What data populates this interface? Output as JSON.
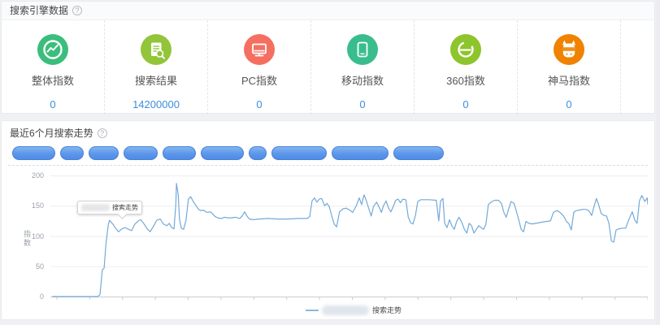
{
  "panel1": {
    "title": "搜索引擎数据",
    "help_icon": "?",
    "value_color": "#3d8edc",
    "cards": [
      {
        "key": "overall-index",
        "label": "整体指数",
        "value": "0",
        "color": "#3bbe7c",
        "icon": "trend-circle-icon"
      },
      {
        "key": "search-results",
        "label": "搜索结果",
        "value": "14200000",
        "color": "#92c53a",
        "icon": "document-search-icon"
      },
      {
        "key": "pc-index",
        "label": "PC指数",
        "value": "0",
        "color": "#f56f61",
        "icon": "monitor-icon"
      },
      {
        "key": "mobile-index",
        "label": "移动指数",
        "value": "0",
        "color": "#3abd8d",
        "icon": "smartphone-icon"
      },
      {
        "key": "360-index",
        "label": "360指数",
        "value": "0",
        "color": "#8ec42c",
        "icon": "360-browser-icon"
      },
      {
        "key": "shenma-index",
        "label": "神马指数",
        "value": "0",
        "color": "#f08200",
        "icon": "shenma-icon"
      }
    ]
  },
  "panel2": {
    "title": "最近6个月搜索走势",
    "help_icon": "?",
    "tag_pill_widths": [
      53,
      29,
      37,
      42,
      41,
      53,
      22,
      68,
      70,
      62
    ],
    "tooltip": {
      "label": "搜索走势"
    },
    "legend": {
      "label": "搜索走势"
    }
  },
  "chart_data": {
    "type": "line",
    "title": "最近6个月搜索走势",
    "xlabel": "",
    "ylabel": "指数",
    "ylim": [
      0,
      200
    ],
    "y_ticks": [
      200,
      150,
      100,
      50,
      0
    ],
    "x_tick_count": 19,
    "grid": true,
    "legend_position": "bottom",
    "x_axis_labels_visible": false,
    "line_color": "#74a9d8",
    "grid_color": "#ecedf0",
    "axis_color": "#c8ccd0",
    "series": [
      {
        "name": "搜索走势",
        "x_unit": "percent_of_6_months",
        "points": [
          [
            0.3,
            0
          ],
          [
            2,
            0
          ],
          [
            4.1,
            0
          ],
          [
            6.1,
            0
          ],
          [
            7.9,
            0
          ],
          [
            8.3,
            3
          ],
          [
            8.7,
            44
          ],
          [
            9,
            47
          ],
          [
            9.3,
            88
          ],
          [
            9.7,
            119
          ],
          [
            9.9,
            126
          ],
          [
            10.5,
            119
          ],
          [
            10.9,
            113
          ],
          [
            11.4,
            107
          ],
          [
            12,
            112
          ],
          [
            12.5,
            114
          ],
          [
            13.1,
            111
          ],
          [
            13.6,
            109
          ],
          [
            14.1,
            119
          ],
          [
            14.7,
            125
          ],
          [
            15.1,
            127
          ],
          [
            15.6,
            121
          ],
          [
            16.2,
            112
          ],
          [
            16.7,
            107
          ],
          [
            17.3,
            117
          ],
          [
            17.8,
            126
          ],
          [
            18.4,
            128
          ],
          [
            18.9,
            120
          ],
          [
            19.5,
            117
          ],
          [
            19.9,
            121
          ],
          [
            20.3,
            114
          ],
          [
            20.7,
            112
          ],
          [
            21,
            152
          ],
          [
            21.1,
            187
          ],
          [
            21.4,
            168
          ],
          [
            21.6,
            128
          ],
          [
            21.9,
            113
          ],
          [
            22.3,
            111
          ],
          [
            22.7,
            126
          ],
          [
            23.1,
            161
          ],
          [
            23.5,
            165
          ],
          [
            23.9,
            157
          ],
          [
            24.4,
            150
          ],
          [
            24.8,
            144
          ],
          [
            25.2,
            142
          ],
          [
            25.6,
            143
          ],
          [
            26,
            140
          ],
          [
            26.4,
            139
          ],
          [
            26.8,
            140
          ],
          [
            27.2,
            136
          ],
          [
            27.6,
            132
          ],
          [
            28,
            130
          ],
          [
            28.6,
            129
          ],
          [
            29.1,
            131
          ],
          [
            29.7,
            130
          ],
          [
            30.3,
            130
          ],
          [
            31,
            131
          ],
          [
            31.7,
            129
          ],
          [
            32.1,
            133
          ],
          [
            32.5,
            140
          ],
          [
            32.9,
            133
          ],
          [
            33.3,
            128
          ],
          [
            34,
            127
          ],
          [
            34.8,
            128
          ],
          [
            36.5,
            129
          ],
          [
            38.1,
            128
          ],
          [
            39.7,
            128
          ],
          [
            41.4,
            129
          ],
          [
            43,
            129
          ],
          [
            43.4,
            132
          ],
          [
            43.8,
            158
          ],
          [
            44.2,
            163
          ],
          [
            44.6,
            156
          ],
          [
            45,
            161
          ],
          [
            45.4,
            162
          ],
          [
            45.9,
            150
          ],
          [
            46.3,
            154
          ],
          [
            46.7,
            148
          ],
          [
            47.1,
            133
          ],
          [
            47.5,
            120
          ],
          [
            47.9,
            115
          ],
          [
            48.4,
            140
          ],
          [
            49,
            145
          ],
          [
            49.5,
            146
          ],
          [
            50.1,
            143
          ],
          [
            50.6,
            139
          ],
          [
            51.2,
            150
          ],
          [
            51.7,
            163
          ],
          [
            52.1,
            152
          ],
          [
            52.5,
            168
          ],
          [
            52.9,
            158
          ],
          [
            53.3,
            145
          ],
          [
            53.7,
            133
          ],
          [
            54.1,
            149
          ],
          [
            54.6,
            156
          ],
          [
            55,
            148
          ],
          [
            55.4,
            139
          ],
          [
            55.8,
            151
          ],
          [
            56.2,
            158
          ],
          [
            56.6,
            146
          ],
          [
            57,
            140
          ],
          [
            57.4,
            149
          ],
          [
            57.8,
            159
          ],
          [
            58.2,
            161
          ],
          [
            58.6,
            155
          ],
          [
            59,
            161
          ],
          [
            59.5,
            160
          ],
          [
            59.9,
            131
          ],
          [
            60.3,
            122
          ],
          [
            60.7,
            120
          ],
          [
            61.1,
            134
          ],
          [
            61.5,
            157
          ],
          [
            62,
            160
          ],
          [
            63.4,
            160
          ],
          [
            64.6,
            159
          ],
          [
            65,
            125
          ],
          [
            65.3,
            158
          ],
          [
            65.7,
            162
          ],
          [
            66,
            121
          ],
          [
            66.4,
            114
          ],
          [
            66.8,
            127
          ],
          [
            67.2,
            117
          ],
          [
            67.6,
            111
          ],
          [
            68,
            124
          ],
          [
            68.4,
            131
          ],
          [
            68.8,
            124
          ],
          [
            69.3,
            111
          ],
          [
            69.7,
            105
          ],
          [
            70.1,
            121
          ],
          [
            70.5,
            117
          ],
          [
            70.9,
            105
          ],
          [
            71.3,
            111
          ],
          [
            71.7,
            117
          ],
          [
            72.1,
            114
          ],
          [
            72.5,
            111
          ],
          [
            72.9,
            119
          ],
          [
            73.3,
            152
          ],
          [
            73.9,
            157
          ],
          [
            74.4,
            159
          ],
          [
            75,
            159
          ],
          [
            75.5,
            154
          ],
          [
            75.9,
            139
          ],
          [
            76.3,
            131
          ],
          [
            76.7,
            144
          ],
          [
            77.1,
            157
          ],
          [
            77.6,
            154
          ],
          [
            78,
            141
          ],
          [
            78.4,
            127
          ],
          [
            78.8,
            111
          ],
          [
            79.2,
            107
          ],
          [
            79.6,
            124
          ],
          [
            80.1,
            121
          ],
          [
            80.7,
            120
          ],
          [
            81.2,
            121
          ],
          [
            81.8,
            122
          ],
          [
            82.3,
            123
          ],
          [
            83,
            124
          ],
          [
            83.7,
            125
          ],
          [
            84.2,
            139
          ],
          [
            84.8,
            142
          ],
          [
            85.3,
            139
          ],
          [
            85.9,
            133
          ],
          [
            86.4,
            124
          ],
          [
            86.8,
            120
          ],
          [
            87.2,
            110
          ],
          [
            87.6,
            139
          ],
          [
            88,
            142
          ],
          [
            88.6,
            143
          ],
          [
            89.1,
            144
          ],
          [
            89.7,
            144
          ],
          [
            90.2,
            141
          ],
          [
            90.6,
            134
          ],
          [
            91,
            149
          ],
          [
            91.4,
            162
          ],
          [
            91.8,
            151
          ],
          [
            92.2,
            137
          ],
          [
            92.7,
            134
          ],
          [
            93.1,
            133
          ],
          [
            93.5,
            121
          ],
          [
            93.9,
            92
          ],
          [
            94.3,
            90
          ],
          [
            94.7,
            110
          ],
          [
            95.2,
            112
          ],
          [
            95.8,
            113
          ],
          [
            96.3,
            113
          ],
          [
            96.9,
            129
          ],
          [
            97.4,
            140
          ],
          [
            97.8,
            127
          ],
          [
            98.2,
            121
          ],
          [
            98.6,
            158
          ],
          [
            99,
            167
          ],
          [
            99.5,
            157
          ],
          [
            99.9,
            163
          ],
          [
            100,
            152
          ]
        ]
      }
    ]
  }
}
